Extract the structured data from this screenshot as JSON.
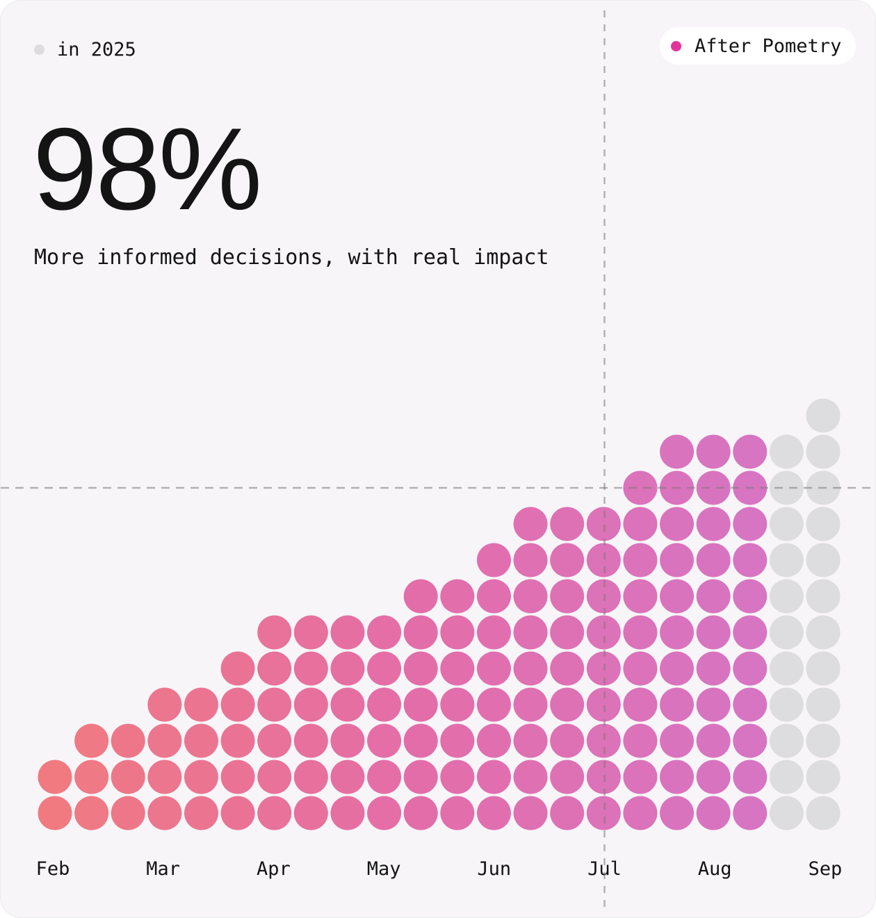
{
  "legend": {
    "year_label": "in 2025",
    "after_label": "After Pometry"
  },
  "headline": {
    "stat": "98%",
    "subtitle": "More informed decisions, with real impact"
  },
  "colors": {
    "start": "#f07a80",
    "mid": "#e46da8",
    "end": "#d775c2",
    "future": "#dddcdf",
    "card": "#f7f5f8"
  },
  "chart_data": {
    "type": "waffle-columns",
    "x_labels": [
      "Feb",
      "Mar",
      "Apr",
      "May",
      "Jun",
      "Jul",
      "Aug",
      "Sep"
    ],
    "column_heights": [
      2,
      3,
      3,
      4,
      4,
      5,
      6,
      6,
      6,
      6,
      7,
      7,
      8,
      9,
      9,
      9,
      10,
      11,
      11,
      11,
      11,
      12
    ],
    "future_columns": 2,
    "reference_lines": {
      "vertical_at_label": "Jul",
      "horizontal_at_row": 10
    }
  }
}
